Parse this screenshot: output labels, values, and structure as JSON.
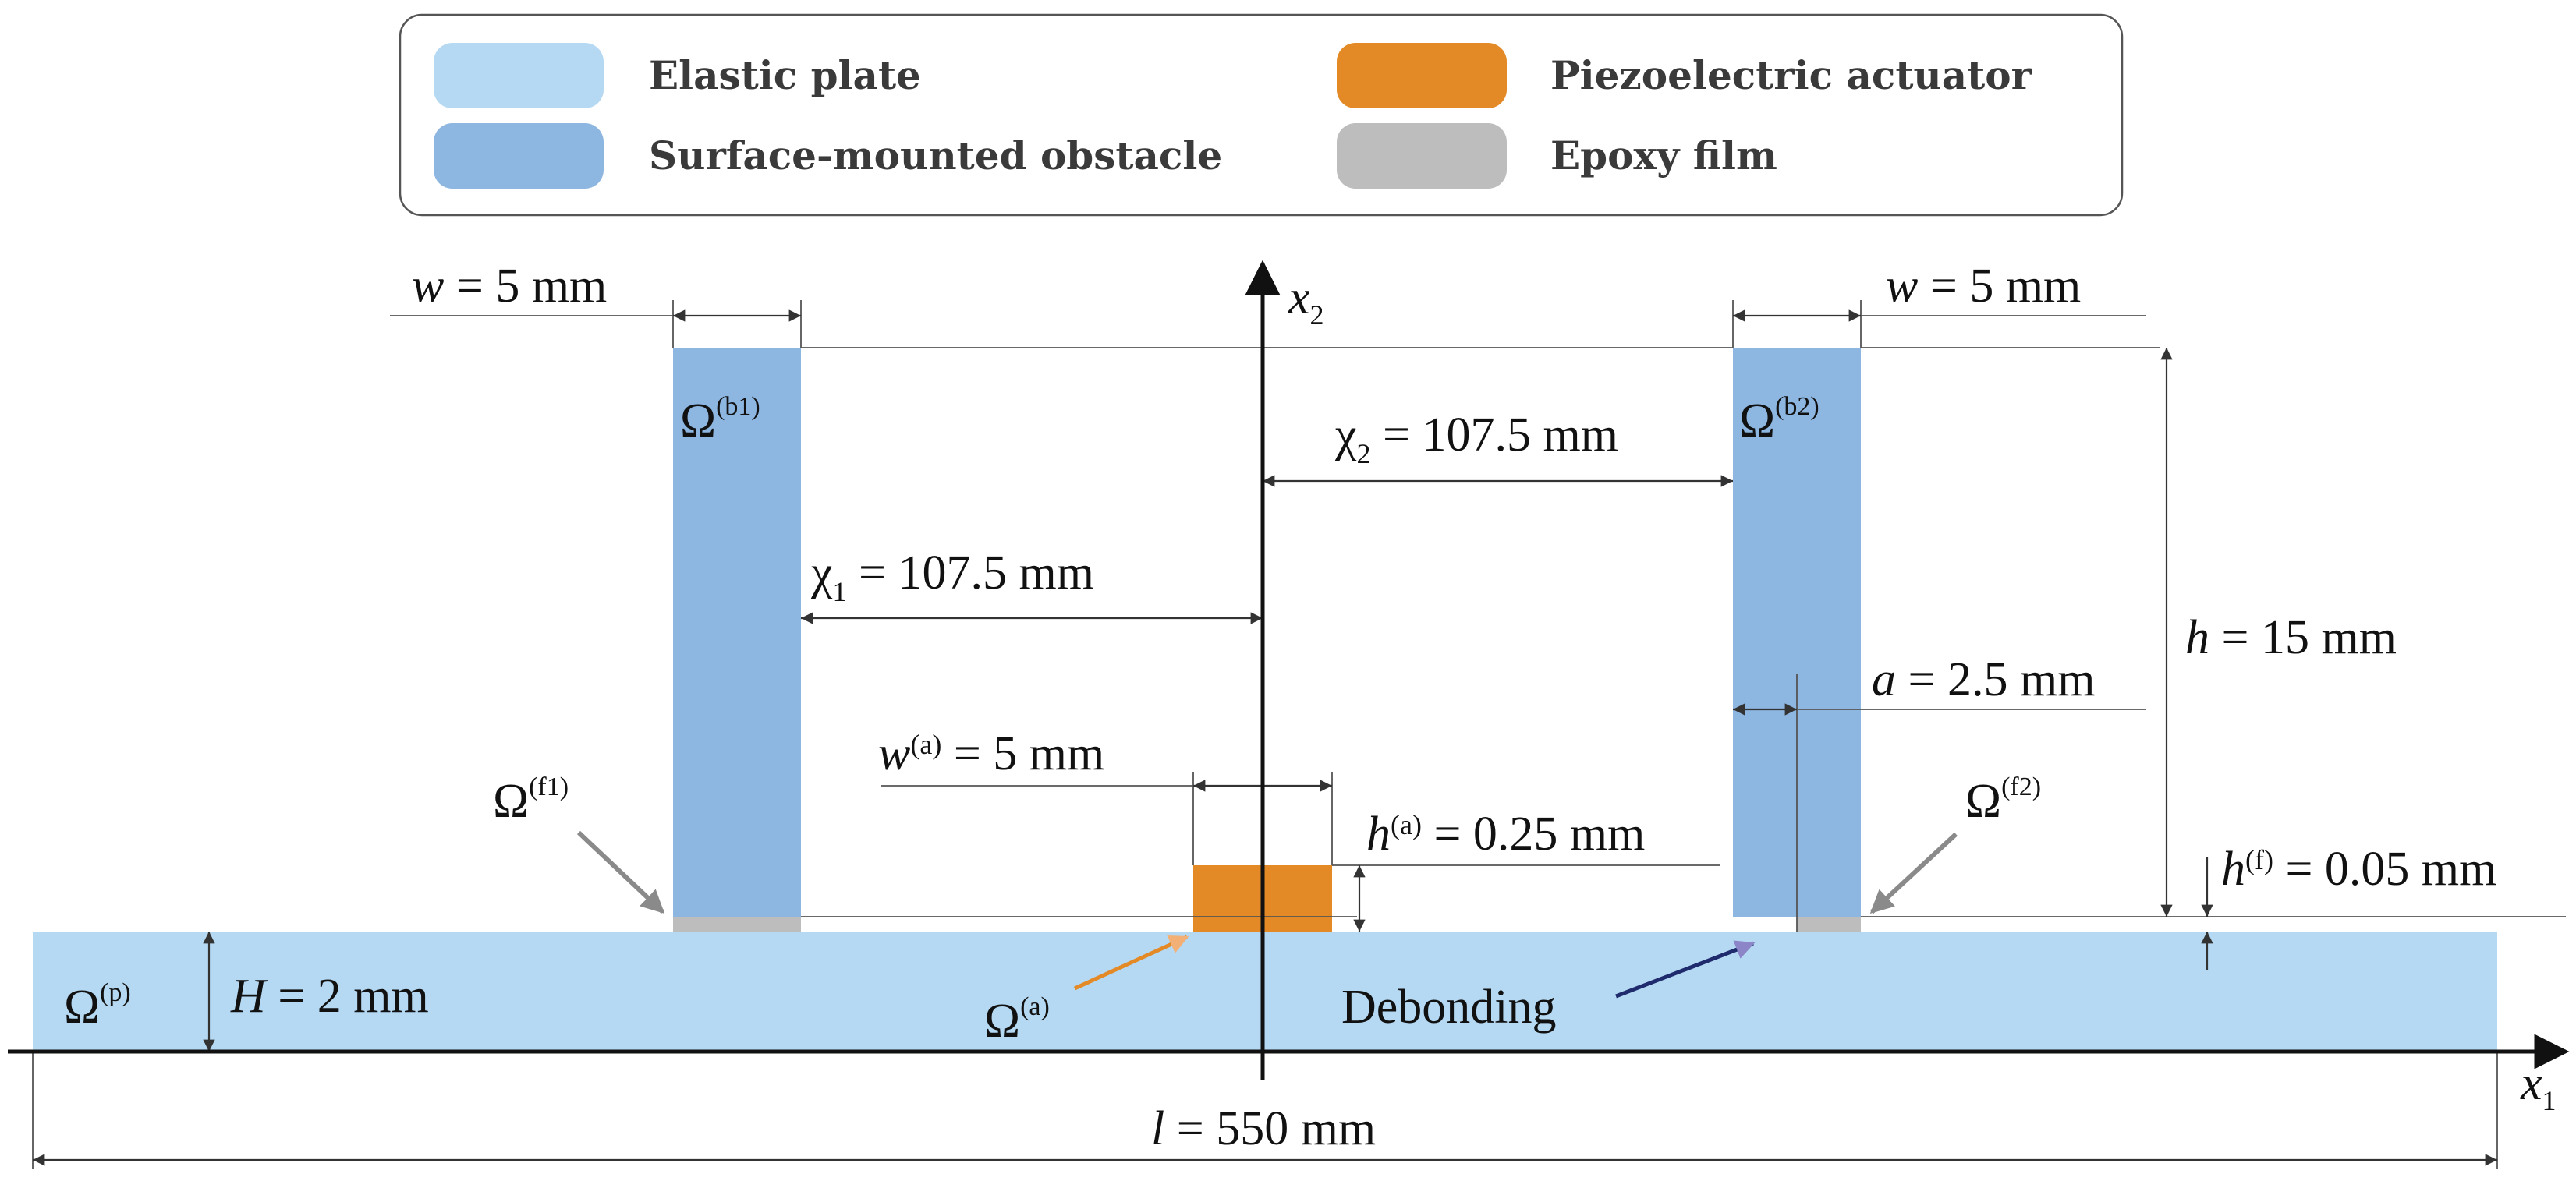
{
  "legend": {
    "items": [
      {
        "label": "Elastic plate",
        "color": "#b5d9f3"
      },
      {
        "label": "Surface-mounted obstacle",
        "color": "#8db6e1"
      },
      {
        "label": "Piezoelectric actuator",
        "color": "#e38a26"
      },
      {
        "label": "Epoxy film",
        "color": "#bdbdbd"
      }
    ]
  },
  "axes": {
    "x_label": "x",
    "x_sub": "1",
    "y_label": "x",
    "y_sub": "2"
  },
  "regions": {
    "plate": {
      "sym": "Ω",
      "sup": "(p)"
    },
    "obstacle1": {
      "sym": "Ω",
      "sup": "(b1)"
    },
    "obstacle2": {
      "sym": "Ω",
      "sup": "(b2)"
    },
    "actuator": {
      "sym": "Ω",
      "sup": "(a)"
    },
    "film1": {
      "sym": "Ω",
      "sup": "(f1)"
    },
    "film2": {
      "sym": "Ω",
      "sup": "(f2)"
    },
    "debonding": "Debonding"
  },
  "dimensions": {
    "w_left": {
      "var": "w",
      "value": " = 5 mm"
    },
    "w_right": {
      "var": "w",
      "value": " = 5 mm"
    },
    "chi1": {
      "var": "χ",
      "sub": "1",
      "value": " = 107.5 mm"
    },
    "chi2": {
      "var": "χ",
      "sub": "2",
      "value": " = 107.5 mm"
    },
    "h": {
      "var": "h",
      "value": " = 15 mm"
    },
    "a": {
      "var": "a",
      "value": " = 2.5 mm"
    },
    "wa": {
      "var": "w",
      "sup": "(a)",
      "value": " = 5 mm"
    },
    "ha": {
      "var": "h",
      "sup": "(a)",
      "value": " = 0.25 mm"
    },
    "hf": {
      "var": "h",
      "sup": "(f)",
      "value": " = 0.05 mm"
    },
    "H": {
      "var": "H",
      "value": " = 2 mm"
    },
    "l": {
      "var": "l",
      "value": " = 550 mm"
    }
  }
}
